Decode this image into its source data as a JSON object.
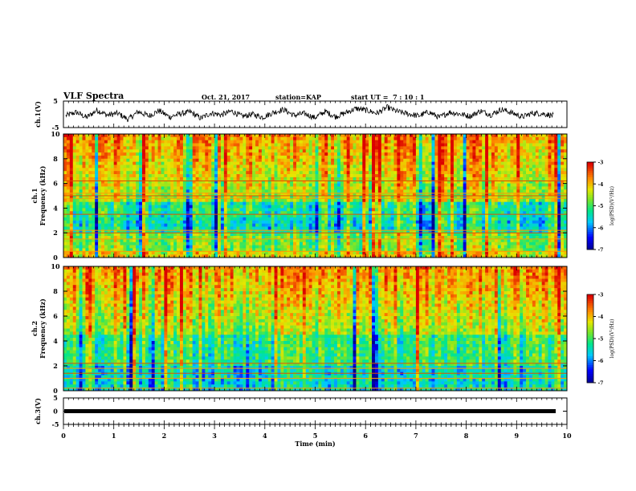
{
  "header": {
    "title": "VLF Spectra",
    "date": "Oct. 21, 2017",
    "station_label": "station=",
    "station": "KAP",
    "start_label": "start UT =",
    "start_time": "7 : 10 : 1"
  },
  "chart_data": [
    {
      "type": "line",
      "ylabel": "ch.1(V)",
      "ylim": [
        -5,
        5
      ],
      "yticks": [
        "5",
        "-5"
      ],
      "description_of_series": "broadband waveform amplitude",
      "series": [
        {
          "values": [
            -0.5,
            0.8,
            -1.2,
            1.6,
            -0.3,
            0.4,
            -1.9,
            1.0,
            -0.6,
            1.4,
            -1.0,
            0.2,
            0.9,
            -1.5,
            0.5,
            -0.2,
            1.2,
            -0.8,
            0.0,
            -1.1,
            0.7,
            1.8,
            -0.4,
            0.3,
            -1.3,
            1.1,
            -0.9,
            0.6,
            2.2,
            1.5,
            0.4,
            2.6,
            1.0,
            0.2,
            -0.6,
            0.9,
            -1.2,
            0.8,
            0.1,
            -0.7,
            1.3,
            -0.2,
            1.9,
            0.6,
            -1.0,
            0.5,
            0.2,
            -0.5
          ]
        }
      ]
    },
    {
      "type": "heatmap",
      "ylabel": "ch.1\nFrequency (kHz)",
      "ylim": [
        0,
        10
      ],
      "yticks": [
        "0",
        "2",
        "4",
        "6",
        "8",
        "10"
      ],
      "colorbar": {
        "label": "log(PSD)(V²/Hz)",
        "range": [
          -7,
          -3
        ],
        "ticks": [
          "-3",
          "-4",
          "-5",
          "-6",
          "-7"
        ]
      }
    },
    {
      "type": "heatmap",
      "ylabel": "ch.2\nFrequency (kHz)",
      "ylim": [
        0,
        10
      ],
      "yticks": [
        "0",
        "2",
        "4",
        "6",
        "8",
        "10"
      ],
      "colorbar": {
        "label": "log(PSD)(V²/Hz)",
        "range": [
          -7,
          -3
        ],
        "ticks": [
          "-3",
          "-4",
          "-5",
          "-6",
          "-7"
        ]
      }
    },
    {
      "type": "line",
      "ylabel": "ch.3(V)",
      "ylim": [
        -5,
        5
      ],
      "yticks": [
        "5",
        "0",
        "-5"
      ],
      "series": [
        {
          "values": [
            0.0,
            0.0
          ]
        }
      ]
    }
  ],
  "x_axis": {
    "label": "Time (min)",
    "range": [
      0,
      10
    ],
    "ticks": [
      "0",
      "1",
      "2",
      "3",
      "4",
      "5",
      "6",
      "7",
      "8",
      "9",
      "10"
    ]
  }
}
